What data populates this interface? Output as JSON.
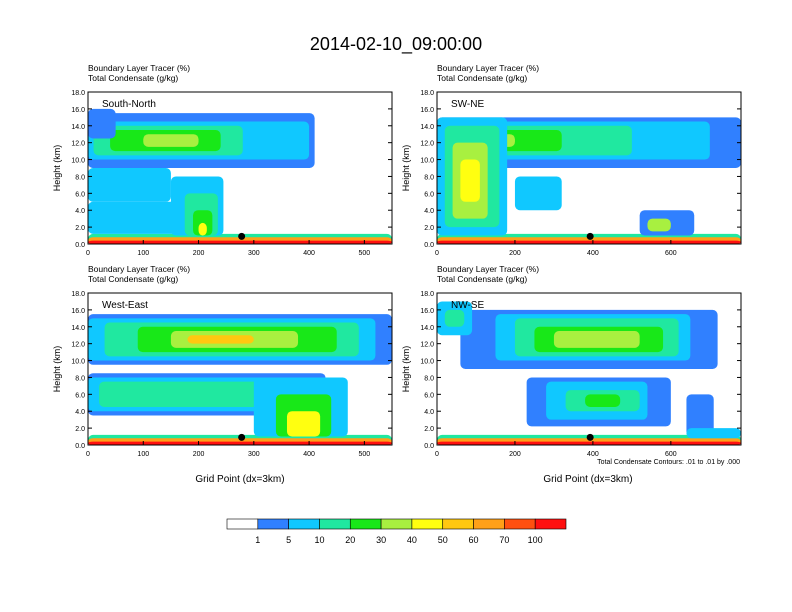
{
  "title": "2014-02-10_09:00:00",
  "panel_subtitle_1": "Boundary Layer Tracer    (%)",
  "panel_subtitle_2": "Total Condensate    (g/kg)",
  "ylabel": "Height (km)",
  "xlabel": "Grid Point (dx=3km)",
  "contour_note": "Total Condensate Contours: .01 to .01 by .000",
  "colors": {
    "levels": [
      "#ffffff",
      "#3080ff",
      "#10c8ff",
      "#20e8a0",
      "#18e818",
      "#a8f040",
      "#ffff10",
      "#ffc810",
      "#ffa018",
      "#ff5010",
      "#ff1010"
    ],
    "contour": "#000000"
  },
  "chart_data": [
    {
      "type": "heatmap",
      "panel": "South-North",
      "xlim": [
        0,
        550
      ],
      "ylim": [
        0,
        18
      ],
      "xticks": [
        "0",
        "100",
        "200",
        "300",
        "400",
        "500"
      ],
      "yticks": [
        "0.0",
        "2.0",
        "4.0",
        "6.0",
        "8.0",
        "10.0",
        "12.0",
        "14.0",
        "16.0",
        "18.0"
      ],
      "marker_x": 278
    },
    {
      "type": "heatmap",
      "panel": "SW-NE",
      "xlim": [
        0,
        780
      ],
      "ylim": [
        0,
        18
      ],
      "xticks": [
        "0",
        "200",
        "400",
        "600"
      ],
      "yticks": [
        "0.0",
        "2.0",
        "4.0",
        "6.0",
        "8.0",
        "10.0",
        "12.0",
        "14.0",
        "16.0",
        "18.0"
      ],
      "marker_x": 393
    },
    {
      "type": "heatmap",
      "panel": "West-East",
      "xlim": [
        0,
        550
      ],
      "ylim": [
        0,
        18
      ],
      "xticks": [
        "0",
        "100",
        "200",
        "300",
        "400",
        "500"
      ],
      "yticks": [
        "0.0",
        "2.0",
        "4.0",
        "6.0",
        "8.0",
        "10.0",
        "12.0",
        "14.0",
        "16.0",
        "18.0"
      ],
      "marker_x": 278
    },
    {
      "type": "heatmap",
      "panel": "NW-SE",
      "xlim": [
        0,
        780
      ],
      "ylim": [
        0,
        18
      ],
      "xticks": [
        "0",
        "200",
        "400",
        "600"
      ],
      "yticks": [
        "0.0",
        "2.0",
        "4.0",
        "6.0",
        "8.0",
        "10.0",
        "12.0",
        "14.0",
        "16.0",
        "18.0"
      ],
      "marker_x": 393
    }
  ],
  "colorbar": {
    "labels": [
      "1",
      "5",
      "10",
      "20",
      "30",
      "40",
      "50",
      "60",
      "70",
      "100"
    ]
  }
}
